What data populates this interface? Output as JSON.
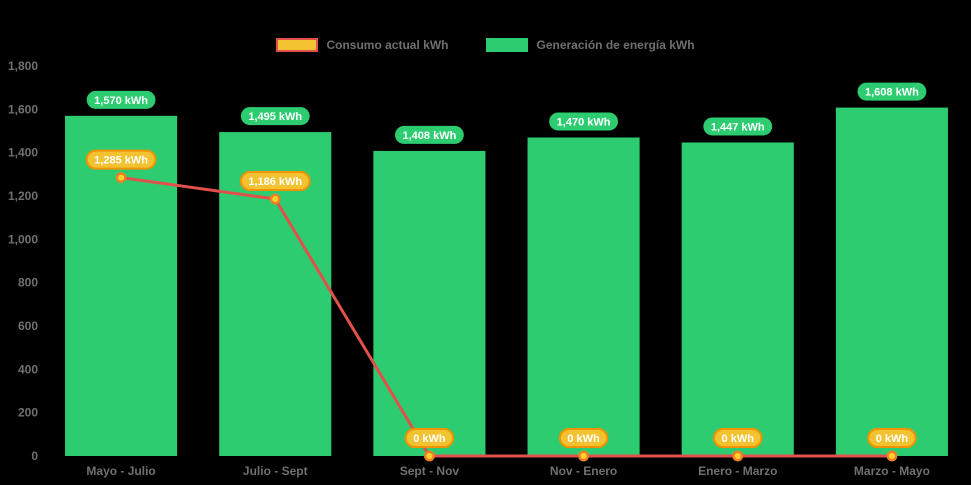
{
  "page": {
    "background": "#000000"
  },
  "legend": {
    "items": [
      {
        "label": "Consumo actual kWh",
        "swatch_fill": "#f2c230",
        "swatch_border": "#e2504b"
      },
      {
        "label": "Generación de energía kWh",
        "swatch_fill": "#2ecc71",
        "swatch_border": "#2ecc71"
      }
    ]
  },
  "chart_data": {
    "type": "bar",
    "subtype": "bar-line-combo",
    "title": "",
    "categories": [
      "Mayo - Julio",
      "Julio - Sept",
      "Sept - Nov",
      "Nov - Enero",
      "Enero - Marzo",
      "Marzo - Mayo"
    ],
    "series": [
      {
        "name": "Generación de energía kWh",
        "type": "bar",
        "color": "#2ecc71",
        "values": [
          1570,
          1495,
          1408,
          1470,
          1447,
          1608
        ],
        "data_labels": [
          "1,570 kWh",
          "1,495 kWh",
          "1,408 kWh",
          "1,470 kWh",
          "1,447 kWh",
          "1,608 kWh"
        ],
        "label_style": {
          "fill": "#2ecc71",
          "stroke": "#2ecc71",
          "text": "#ffffff"
        }
      },
      {
        "name": "Consumo actual kWh",
        "type": "line",
        "color": "#e2504b",
        "marker": {
          "fill": "#ffd22e",
          "stroke": "#f28022"
        },
        "values": [
          1285,
          1186,
          0,
          0,
          0,
          0
        ],
        "data_labels": [
          "1,285 kWh",
          "1,186 kWh",
          "0 kWh",
          "0 kWh",
          "0 kWh",
          "0 kWh"
        ],
        "label_style": {
          "fill": "#f2c230",
          "stroke": "#f39200",
          "text": "#ffffff"
        }
      }
    ],
    "yaxis": {
      "min": 0,
      "max": 1800,
      "tick_step": 200,
      "tick_labels": [
        "0",
        "200",
        "400",
        "600",
        "800",
        "1,000",
        "1,200",
        "1,400",
        "1,600",
        "1,800"
      ]
    },
    "grid": false,
    "legend_position": "top-center",
    "axis_text_color": "#707070"
  }
}
